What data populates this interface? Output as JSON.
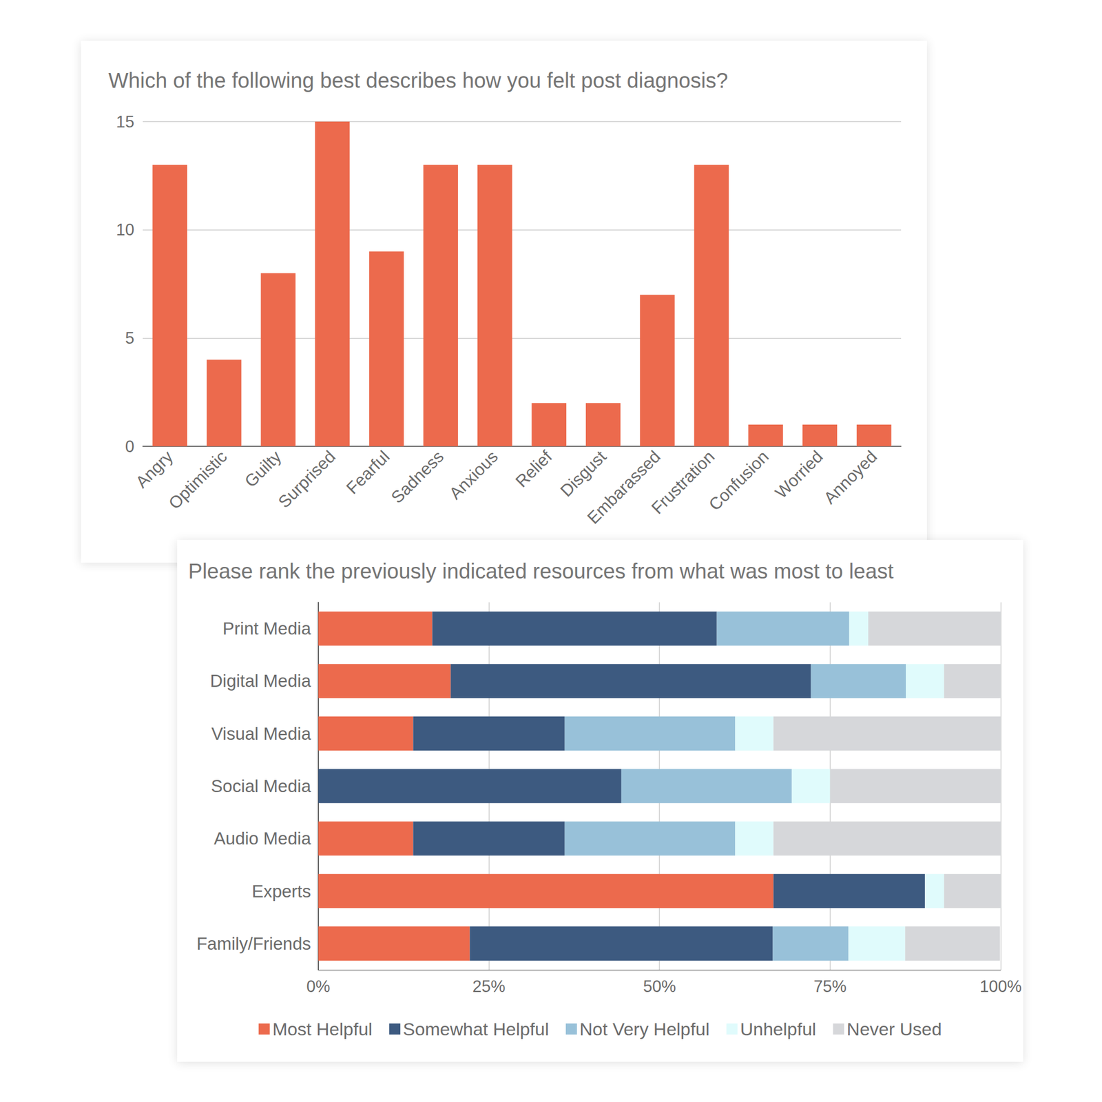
{
  "chart_data": [
    {
      "type": "bar",
      "title": "Which of the following best describes how you felt post diagnosis?",
      "categories": [
        "Angry",
        "Optimistic",
        "Guilty",
        "Surprised",
        "Fearful",
        "Sadness",
        "Anxious",
        "Relief",
        "Disgust",
        "Embarassed",
        "Frustration",
        "Confusion",
        "Worried",
        "Annoyed"
      ],
      "values": [
        13,
        4,
        8,
        15,
        9,
        13,
        13,
        2,
        2,
        7,
        13,
        1,
        1,
        1
      ],
      "color": "#ec6a4d",
      "ylim": [
        0,
        15
      ],
      "yticks": [
        0,
        5,
        10,
        15
      ],
      "grid": true
    },
    {
      "type": "bar",
      "title": "Please rank the previously indicated resources from what was most to least",
      "orientation": "horizontal",
      "stacked": true,
      "legend": "bottom",
      "grid": true,
      "categories": [
        "Print Media",
        "Digital Media",
        "Visual Media",
        "Social Media",
        "Audio Media",
        "Experts",
        "Family/Friends"
      ],
      "series": [
        {
          "name": "Most Helpful",
          "color": "#ec6a4d",
          "values": [
            16.7,
            19.4,
            13.9,
            0,
            13.9,
            66.7,
            22.2
          ]
        },
        {
          "name": "Somewhat Helpful",
          "color": "#3d5a80",
          "values": [
            41.7,
            52.8,
            22.2,
            44.4,
            22.2,
            22.2,
            44.4
          ]
        },
        {
          "name": "Not Very Helpful",
          "color": "#98c1d9",
          "values": [
            19.4,
            13.9,
            25.0,
            25.0,
            25.0,
            0,
            11.1
          ]
        },
        {
          "name": "Unhelpful",
          "color": "#e0fbfc",
          "values": [
            2.8,
            5.6,
            5.6,
            5.6,
            5.6,
            2.8,
            8.3
          ]
        },
        {
          "name": "Never Used",
          "color": "#d6d7da",
          "values": [
            19.4,
            8.3,
            33.3,
            25.0,
            33.3,
            8.3,
            13.9
          ]
        }
      ],
      "xlim": [
        0,
        100
      ],
      "xticks": [
        {
          "value": 0,
          "label": "0%"
        },
        {
          "value": 25,
          "label": "25%"
        },
        {
          "value": 50,
          "label": "50%"
        },
        {
          "value": 75,
          "label": "75%"
        },
        {
          "value": 100,
          "label": "100%"
        }
      ]
    }
  ]
}
